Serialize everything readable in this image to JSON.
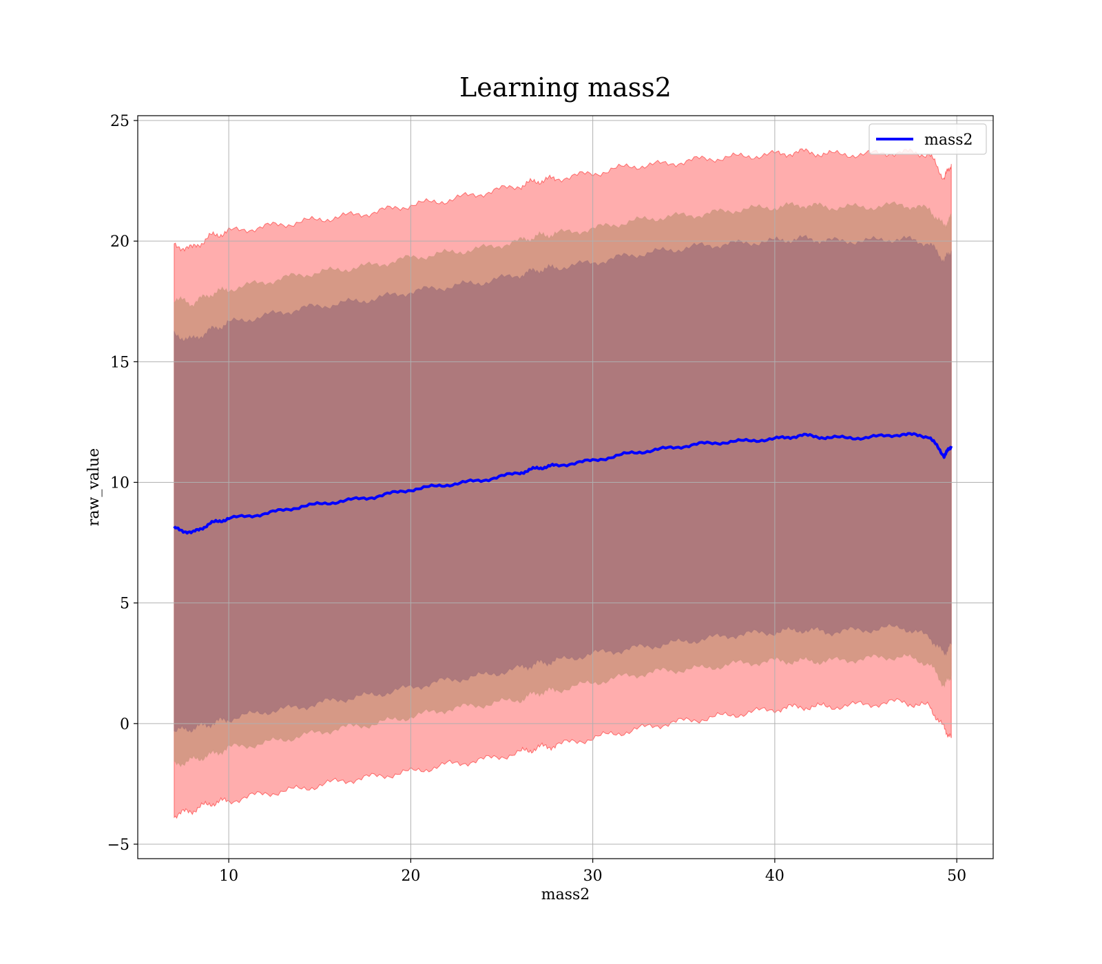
{
  "chart_data": {
    "type": "line",
    "title": "Learning mass2",
    "xlabel": "mass2",
    "ylabel": "raw_value",
    "xlim": [
      5,
      52
    ],
    "ylim": [
      -5.6,
      25.2
    ],
    "x_ticks": [
      10,
      20,
      30,
      40,
      50
    ],
    "x_tick_labels": [
      "10",
      "20",
      "30",
      "40",
      "50"
    ],
    "y_ticks": [
      -5,
      0,
      5,
      10,
      15,
      20,
      25
    ],
    "y_tick_labels": [
      "−5",
      "0",
      "5",
      "10",
      "15",
      "20",
      "25"
    ],
    "grid": true,
    "legend": {
      "position": "top-right",
      "entries": [
        "mass2"
      ]
    },
    "colors": {
      "line": "#0000ff",
      "band": "#ff0000",
      "band_outer": "#ffb0b0",
      "band_middle": "#c8937a",
      "band_inner": "#a06f78"
    },
    "x": [
      7,
      8,
      9,
      10,
      12,
      14,
      16,
      18,
      20,
      22,
      24,
      26,
      27,
      28,
      30,
      32,
      34,
      36,
      38,
      40,
      41.5,
      43,
      45,
      47,
      48.5,
      49.3,
      49.7
    ],
    "series": [
      {
        "name": "mass2",
        "values": [
          8.1,
          7.9,
          8.3,
          8.5,
          8.7,
          9.0,
          9.2,
          9.4,
          9.7,
          9.9,
          10.1,
          10.4,
          10.6,
          10.7,
          10.9,
          11.2,
          11.4,
          11.6,
          11.7,
          11.8,
          11.95,
          11.85,
          11.85,
          12.0,
          11.9,
          11.1,
          11.5
        ]
      }
    ],
    "bands": [
      {
        "name": "outer",
        "lower": [
          -3.8,
          -3.6,
          -3.3,
          -3.2,
          -2.9,
          -2.7,
          -2.4,
          -2.2,
          -2.0,
          -1.7,
          -1.5,
          -1.2,
          -1.0,
          -0.9,
          -0.6,
          -0.3,
          0.0,
          0.2,
          0.4,
          0.6,
          0.7,
          0.7,
          0.8,
          0.9,
          0.7,
          -0.2,
          -0.6
        ],
        "upper": [
          19.8,
          19.7,
          20.2,
          20.4,
          20.6,
          20.8,
          21.0,
          21.2,
          21.5,
          21.7,
          22.0,
          22.3,
          22.5,
          22.6,
          22.8,
          23.1,
          23.2,
          23.4,
          23.5,
          23.6,
          23.7,
          23.6,
          23.6,
          23.7,
          23.6,
          22.6,
          23.2
        ]
      },
      {
        "name": "middle",
        "lower": [
          -1.7,
          -1.5,
          -1.3,
          -1.0,
          -0.8,
          -0.5,
          -0.2,
          0.0,
          0.3,
          0.6,
          0.8,
          1.0,
          1.3,
          1.4,
          1.7,
          2.0,
          2.2,
          2.3,
          2.5,
          2.6,
          2.6,
          2.6,
          2.7,
          2.8,
          2.5,
          1.6,
          2.0
        ],
        "upper": [
          17.6,
          17.4,
          17.8,
          18.0,
          18.3,
          18.6,
          18.8,
          19.0,
          19.3,
          19.5,
          19.7,
          20.0,
          20.2,
          20.3,
          20.5,
          20.8,
          21.0,
          21.1,
          21.3,
          21.4,
          21.5,
          21.4,
          21.4,
          21.5,
          21.3,
          20.6,
          21.0
        ]
      },
      {
        "name": "inner",
        "lower": [
          -0.3,
          -0.2,
          0.0,
          0.2,
          0.5,
          0.7,
          1.0,
          1.2,
          1.5,
          1.8,
          2.0,
          2.3,
          2.5,
          2.6,
          2.9,
          3.1,
          3.3,
          3.5,
          3.7,
          3.8,
          3.9,
          3.8,
          3.9,
          4.0,
          3.6,
          2.9,
          3.3
        ],
        "upper": [
          16.1,
          15.9,
          16.3,
          16.6,
          16.9,
          17.2,
          17.4,
          17.6,
          17.9,
          18.1,
          18.3,
          18.6,
          18.8,
          18.9,
          19.1,
          19.4,
          19.6,
          19.8,
          19.9,
          20.0,
          20.1,
          20.0,
          20.0,
          20.1,
          19.9,
          19.2,
          19.6
        ]
      }
    ]
  }
}
